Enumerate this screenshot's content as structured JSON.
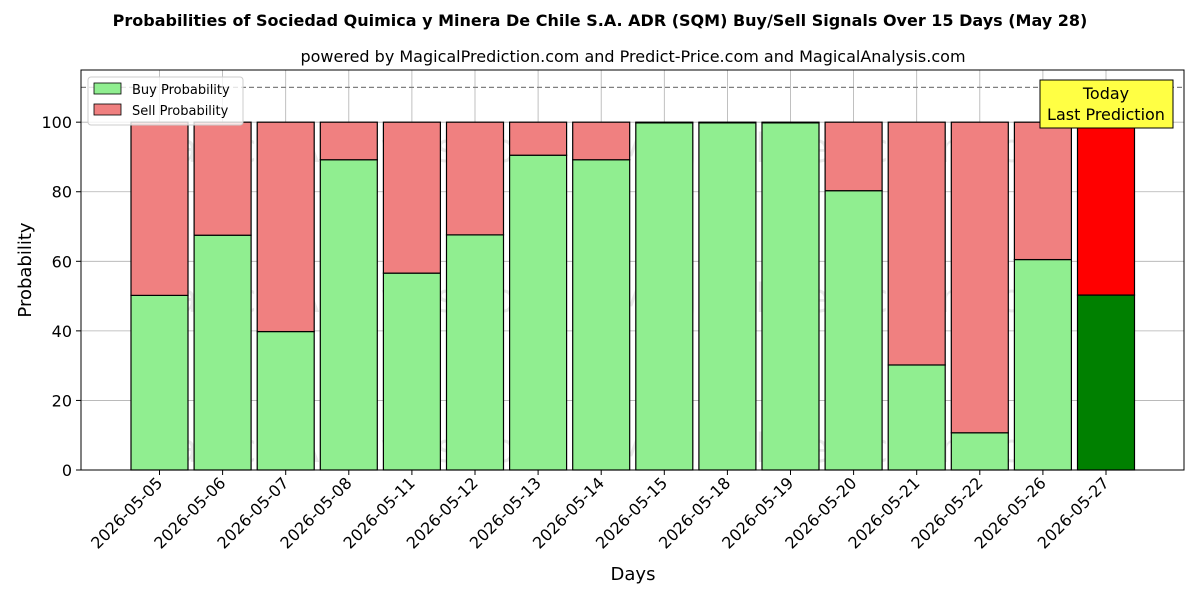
{
  "chart_data": {
    "type": "bar",
    "stacked": true,
    "title": "Probabilities of Sociedad Quimica y Minera De Chile S.A. ADR (SQM) Buy/Sell Signals Over 15 Days (May 28)",
    "subtitle": "powered by MagicalPrediction.com and Predict-Price.com and MagicalAnalysis.com",
    "xlabel": "Days",
    "ylabel": "Probability",
    "ylim": [
      0,
      115
    ],
    "yticks": [
      0,
      20,
      40,
      60,
      80,
      100
    ],
    "threshold_line": 110,
    "grid": true,
    "legend_position": "top-left",
    "categories": [
      "2026-05-05",
      "2026-05-06",
      "2026-05-07",
      "2026-05-08",
      "2026-05-11",
      "2026-05-12",
      "2026-05-13",
      "2026-05-14",
      "2026-05-15",
      "2026-05-18",
      "2026-05-19",
      "2026-05-20",
      "2026-05-21",
      "2026-05-22",
      "2026-05-26",
      "2026-05-27"
    ],
    "series": [
      {
        "name": "Buy Probability",
        "color": "#90ee90",
        "highlight_color": "#008000",
        "values": [
          50.2,
          67.5,
          39.8,
          89.2,
          56.6,
          67.6,
          90.5,
          89.2,
          99.8,
          99.8,
          99.8,
          80.3,
          30.2,
          10.7,
          60.5,
          50.3
        ]
      },
      {
        "name": "Sell Probability",
        "color": "#f08080",
        "highlight_color": "#ff0000",
        "values": [
          49.8,
          32.5,
          60.2,
          10.8,
          43.4,
          32.4,
          9.5,
          10.8,
          0.2,
          0.2,
          0.2,
          19.7,
          69.8,
          89.3,
          39.5,
          49.7
        ]
      }
    ],
    "annotation": {
      "line1": "Today",
      "line2": "Last Prediction",
      "color": "#ffff44"
    },
    "watermarks": [
      "MagicalAnalysis.com",
      "MagicalPrediction.com"
    ]
  }
}
